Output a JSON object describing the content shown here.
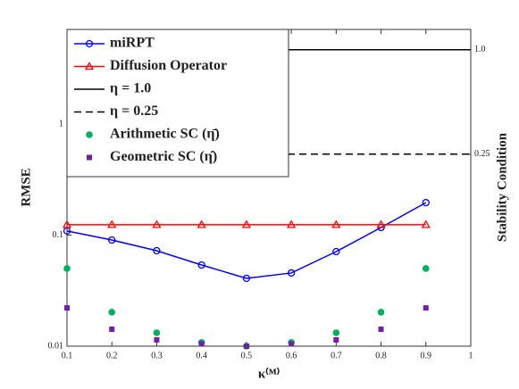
{
  "chart_data": {
    "type": "line",
    "x_label": "κ⁽ᴹ⁾",
    "y_label": "RMSE",
    "y2_label": "Stability Condition",
    "x": [
      0.1,
      0.2,
      0.3,
      0.4,
      0.5,
      0.6,
      0.7,
      0.8,
      0.9
    ],
    "xlim": [
      0.1,
      1
    ],
    "xticks": [
      0.1,
      0.2,
      0.3,
      0.4,
      0.5,
      0.6,
      0.7,
      0.8,
      0.9,
      1
    ],
    "ylim": [
      0.01,
      7.1
    ],
    "yticks": [
      0.01,
      0.1,
      1
    ],
    "ylog": true,
    "y2lim": [
      0.0195,
      1.31
    ],
    "y2ticks": [
      {
        "value": 1,
        "label": "1.0"
      },
      0.25
    ],
    "y2log": true,
    "grid": false,
    "legend": "upper left",
    "series": [
      {
        "name": "miRPT",
        "color": "#0000ff",
        "marker": "circle",
        "line": true,
        "values": [
          0.109,
          0.0903,
          0.0723,
          0.0538,
          0.0408,
          0.0456,
          0.071,
          0.117,
          0.196
        ]
      },
      {
        "name": "Diffusion Operator",
        "color": "#ff0000",
        "marker": "triangle",
        "line": true,
        "values": [
          0.124,
          0.124,
          0.124,
          0.124,
          0.124,
          0.124,
          0.124,
          0.124,
          0.124
        ]
      },
      {
        "name": "Arithmetic SC (η̄)",
        "color": "#00b060",
        "marker": "dot",
        "line": false,
        "values": [
          0.05,
          0.0202,
          0.0132,
          0.0108,
          0.01,
          0.0108,
          0.0132,
          0.0202,
          0.05
        ]
      },
      {
        "name": "Geometric SC (η̂)",
        "color": "#7020a0",
        "marker": "square",
        "line": false,
        "values": [
          0.0221,
          0.0142,
          0.0114,
          0.0105,
          0.01,
          0.0105,
          0.0114,
          0.0142,
          0.0221
        ]
      }
    ],
    "reference_lines": [
      {
        "name": "η = 1.0",
        "value": 1.0,
        "axis": "y2",
        "style": "solid",
        "color": "#000000"
      },
      {
        "name": "η = 0.25",
        "value": 0.25,
        "axis": "y2",
        "style": "dashed",
        "color": "#000000"
      }
    ]
  }
}
